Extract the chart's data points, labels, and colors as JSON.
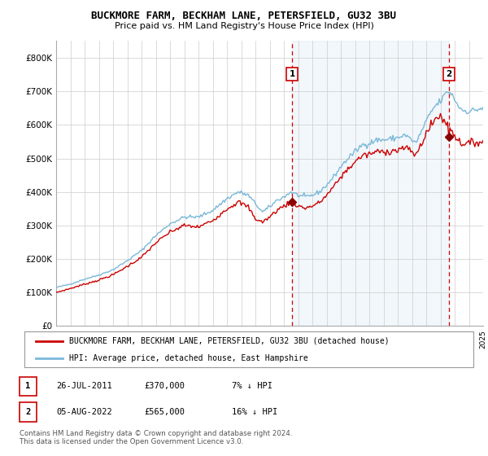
{
  "title": "BUCKMORE FARM, BECKHAM LANE, PETERSFIELD, GU32 3BU",
  "subtitle": "Price paid vs. HM Land Registry's House Price Index (HPI)",
  "hpi_color": "#7ab8d8",
  "price_color": "#cc0000",
  "marker_color": "#8b0000",
  "span_color": "#ddeef8",
  "grid_color": "#cccccc",
  "plot_bg": "#ffffff",
  "ylim": [
    0,
    850000
  ],
  "yticks": [
    0,
    100000,
    200000,
    300000,
    400000,
    500000,
    600000,
    700000,
    800000
  ],
  "ylabels": [
    "£0",
    "£100K",
    "£200K",
    "£300K",
    "£400K",
    "£500K",
    "£600K",
    "£700K",
    "£800K"
  ],
  "sale1_date": "26-JUL-2011",
  "sale1_price": 370000,
  "sale1_x": 2011.57,
  "sale2_date": "05-AUG-2022",
  "sale2_price": 565000,
  "sale2_x": 2022.6,
  "legend_entry1": "BUCKMORE FARM, BECKHAM LANE, PETERSFIELD, GU32 3BU (detached house)",
  "legend_entry2": "HPI: Average price, detached house, East Hampshire",
  "footnote": "Contains HM Land Registry data © Crown copyright and database right 2024.\nThis data is licensed under the Open Government Licence v3.0.",
  "xmin": 1995,
  "xmax": 2025
}
